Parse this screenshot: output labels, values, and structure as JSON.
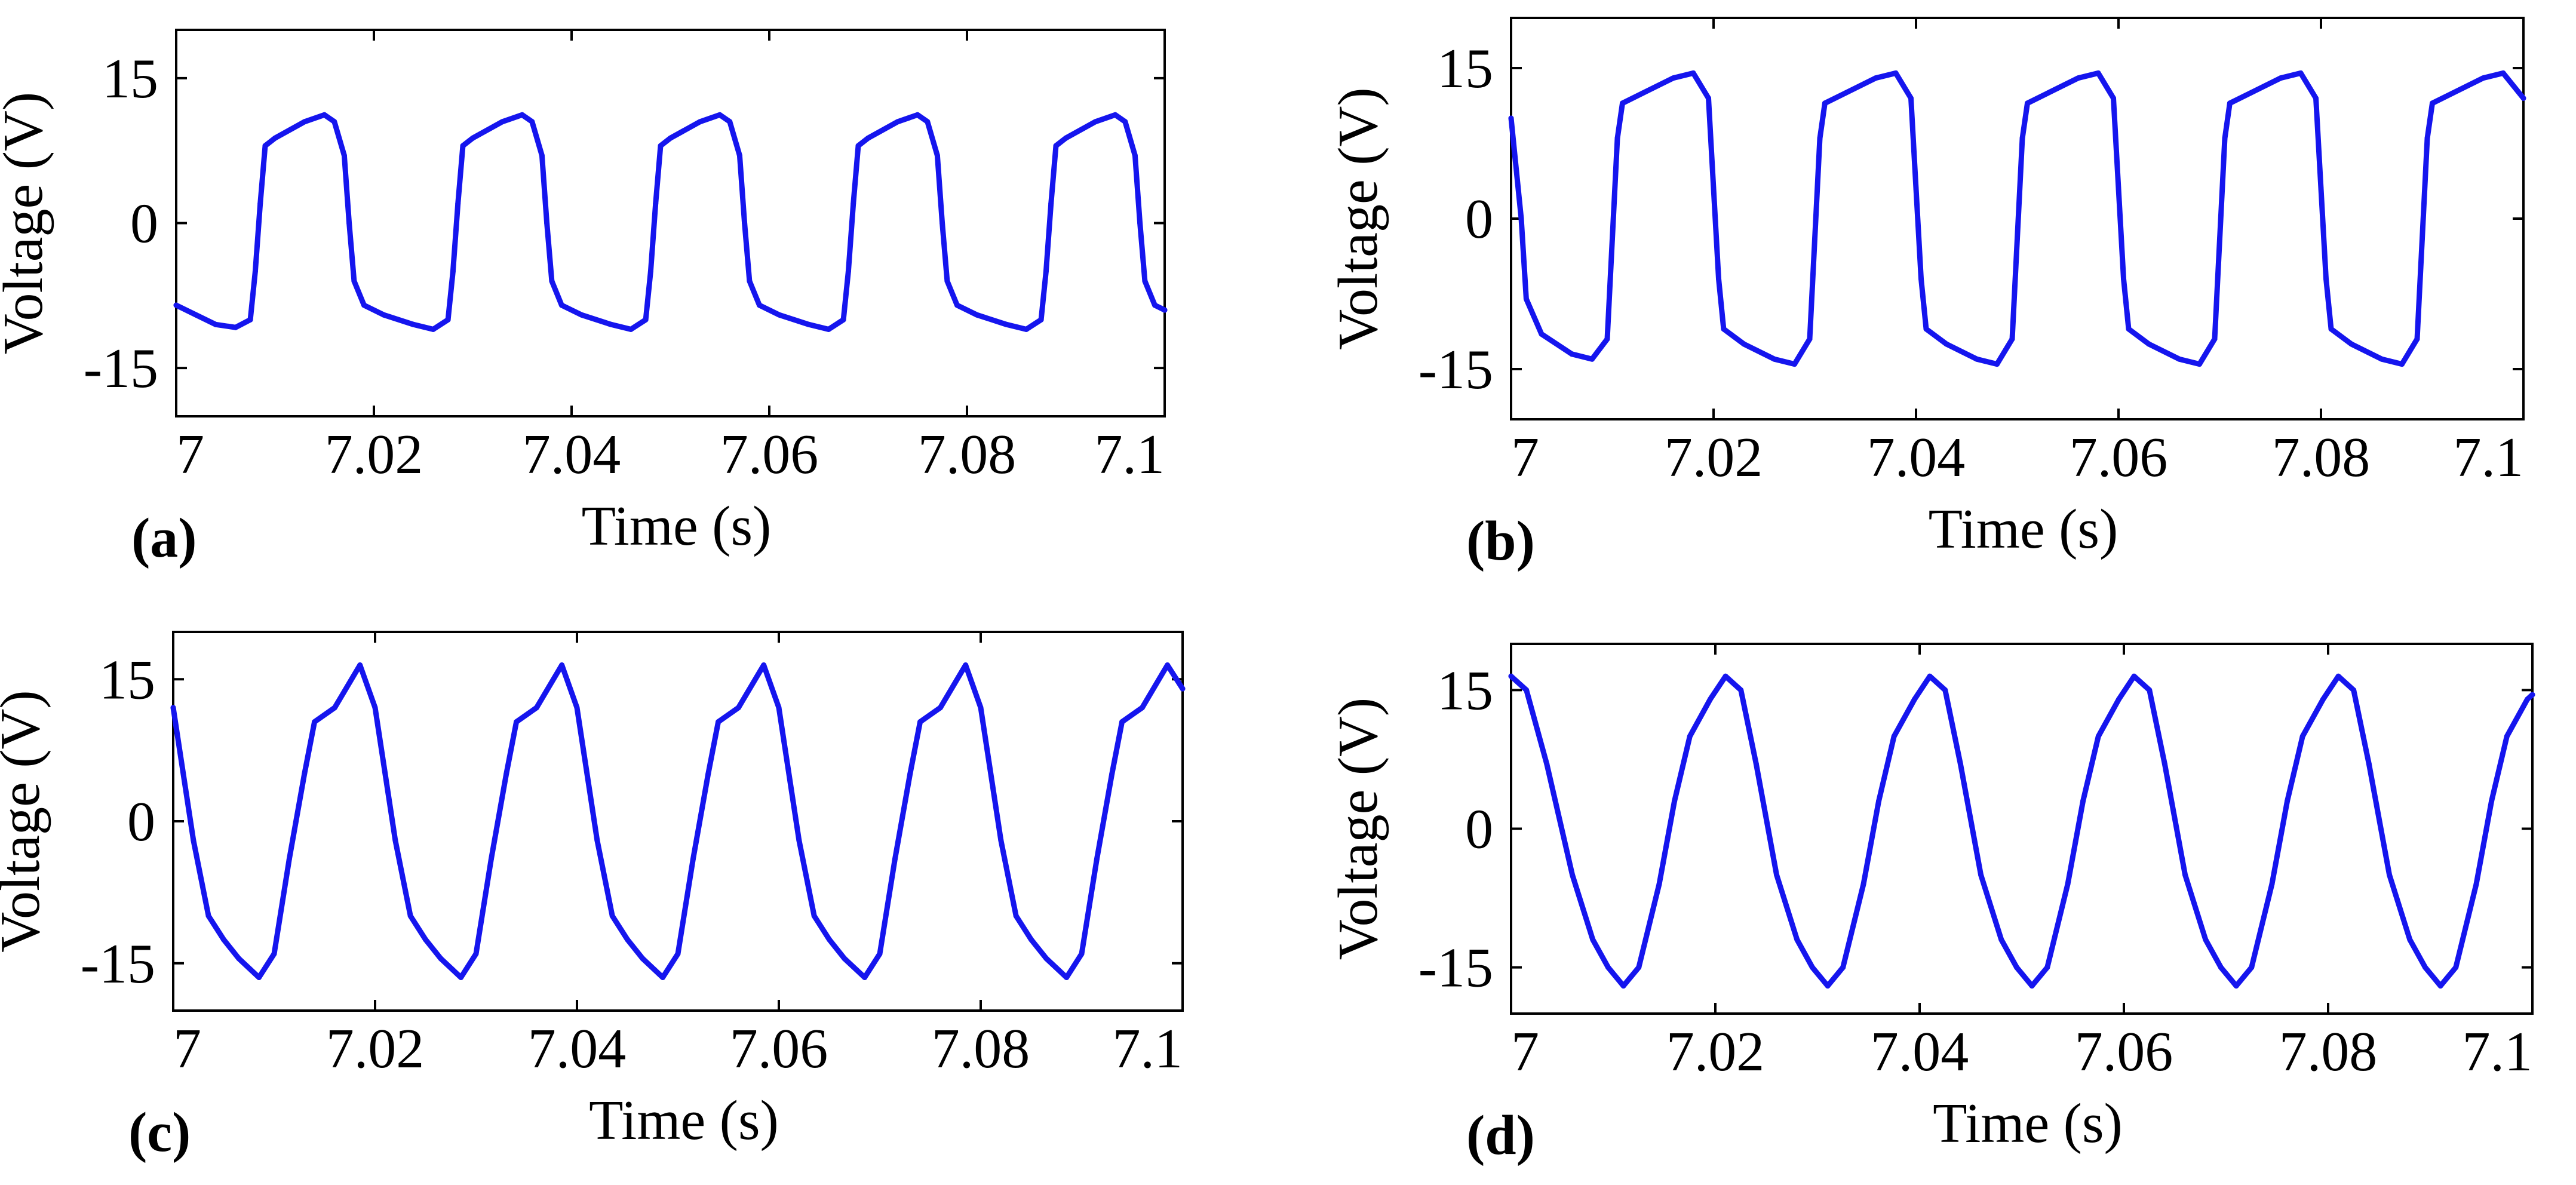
{
  "chart_data": [
    {
      "panel_label": "(a)",
      "type": "line",
      "xlabel": "Time (s)",
      "ylabel": "Voltage (V)",
      "xlim": [
        7,
        7.1
      ],
      "ylim": [
        -20,
        20
      ],
      "xticks": [
        7,
        7.02,
        7.04,
        7.06,
        7.08,
        7.1
      ],
      "xtick_labels": [
        "7",
        "7.02",
        "7.04",
        "7.06",
        "7.08",
        "7.1"
      ],
      "yticks": [
        15,
        0,
        -15
      ],
      "ytick_labels": [
        "15",
        "0",
        "-15"
      ],
      "grid": false,
      "series": [
        {
          "name": "voltage",
          "color": "#1515ee",
          "x": [
            7.0,
            7.002,
            7.004,
            7.006,
            7.0075,
            7.008,
            7.0085,
            7.009,
            7.01,
            7.013,
            7.015,
            7.016,
            7.017,
            7.0175,
            7.018,
            7.019,
            7.021,
            7.024,
            7.026,
            7.0275,
            7.028,
            7.0285,
            7.029,
            7.03,
            7.033,
            7.035,
            7.036,
            7.037,
            7.0375,
            7.038,
            7.039,
            7.041,
            7.044,
            7.046,
            7.0475,
            7.048,
            7.0485,
            7.049,
            7.05,
            7.053,
            7.055,
            7.056,
            7.057,
            7.0575,
            7.058,
            7.059,
            7.061,
            7.064,
            7.066,
            7.0675,
            7.068,
            7.0685,
            7.069,
            7.07,
            7.073,
            7.075,
            7.076,
            7.077,
            7.0775,
            7.078,
            7.079,
            7.081,
            7.084,
            7.086,
            7.0875,
            7.088,
            7.0885,
            7.089,
            7.09,
            7.093,
            7.095,
            7.096,
            7.097,
            7.0975,
            7.098,
            7.099,
            7.1
          ],
          "y": [
            -8.5,
            -9.5,
            -10.5,
            -10.8,
            -10.0,
            -5.0,
            2.0,
            8.0,
            8.8,
            10.5,
            11.2,
            10.5,
            7.0,
            0.0,
            -6.0,
            -8.5,
            -9.5,
            -10.5,
            -11.0,
            -10.0,
            -5.0,
            2.0,
            8.0,
            8.8,
            10.5,
            11.2,
            10.5,
            7.0,
            0.0,
            -6.0,
            -8.5,
            -9.5,
            -10.5,
            -11.0,
            -10.0,
            -5.0,
            2.0,
            8.0,
            8.8,
            10.5,
            11.2,
            10.5,
            7.0,
            0.0,
            -6.0,
            -8.5,
            -9.5,
            -10.5,
            -11.0,
            -10.0,
            -5.0,
            2.0,
            8.0,
            8.8,
            10.5,
            11.2,
            10.5,
            7.0,
            0.0,
            -6.0,
            -8.5,
            -9.5,
            -10.5,
            -11.0,
            -10.0,
            -5.0,
            2.0,
            8.0,
            8.8,
            10.5,
            11.2,
            10.5,
            7.0,
            0.0,
            -6.0,
            -8.5,
            -9.0
          ]
        }
      ]
    },
    {
      "panel_label": "(b)",
      "type": "line",
      "xlabel": "Time (s)",
      "ylabel": "Voltage (V)",
      "xlim": [
        7,
        7.1
      ],
      "ylim": [
        -20,
        20
      ],
      "xticks": [
        7,
        7.02,
        7.04,
        7.06,
        7.08,
        7.1
      ],
      "xtick_labels": [
        "7",
        "7.02",
        "7.04",
        "7.06",
        "7.08",
        "7.1"
      ],
      "yticks": [
        15,
        0,
        -15
      ],
      "ytick_labels": [
        "15",
        "0",
        "-15"
      ],
      "grid": false,
      "series": [
        {
          "name": "voltage",
          "color": "#1515ee",
          "x": [
            7.0,
            7.001,
            7.0015,
            7.003,
            7.006,
            7.008,
            7.0095,
            7.01,
            7.0105,
            7.011,
            7.013,
            7.016,
            7.018,
            7.0195,
            7.02,
            7.0205,
            7.021,
            7.023,
            7.026,
            7.028,
            7.0295,
            7.03,
            7.0305,
            7.031,
            7.033,
            7.036,
            7.038,
            7.0395,
            7.04,
            7.0405,
            7.041,
            7.043,
            7.046,
            7.048,
            7.0495,
            7.05,
            7.0505,
            7.051,
            7.053,
            7.056,
            7.058,
            7.0595,
            7.06,
            7.0605,
            7.061,
            7.063,
            7.066,
            7.068,
            7.0695,
            7.07,
            7.0705,
            7.071,
            7.073,
            7.076,
            7.078,
            7.0795,
            7.08,
            7.0805,
            7.081,
            7.083,
            7.086,
            7.088,
            7.0895,
            7.09,
            7.0905,
            7.091,
            7.093,
            7.096,
            7.098,
            7.1
          ],
          "y": [
            10.0,
            0.0,
            -8.0,
            -11.5,
            -13.5,
            -14.0,
            -12.0,
            -2.0,
            8.0,
            11.5,
            12.5,
            14.0,
            14.5,
            12.0,
            3.0,
            -6.0,
            -11.0,
            -12.5,
            -14.0,
            -14.5,
            -12.0,
            -2.0,
            8.0,
            11.5,
            12.5,
            14.0,
            14.5,
            12.0,
            3.0,
            -6.0,
            -11.0,
            -12.5,
            -14.0,
            -14.5,
            -12.0,
            -2.0,
            8.0,
            11.5,
            12.5,
            14.0,
            14.5,
            12.0,
            3.0,
            -6.0,
            -11.0,
            -12.5,
            -14.0,
            -14.5,
            -12.0,
            -2.0,
            8.0,
            11.5,
            12.5,
            14.0,
            14.5,
            12.0,
            3.0,
            -6.0,
            -11.0,
            -12.5,
            -14.0,
            -14.5,
            -12.0,
            -2.0,
            8.0,
            11.5,
            12.5,
            14.0,
            14.5,
            12.0
          ]
        }
      ]
    },
    {
      "panel_label": "(c)",
      "type": "line",
      "xlabel": "Time (s)",
      "ylabel": "Voltage (V)",
      "xlim": [
        7,
        7.1
      ],
      "ylim": [
        -20,
        20
      ],
      "xticks": [
        7,
        7.02,
        7.04,
        7.06,
        7.08,
        7.1
      ],
      "xtick_labels": [
        "7",
        "7.02",
        "7.04",
        "7.06",
        "7.08",
        "7.1"
      ],
      "yticks": [
        15,
        0,
        -15
      ],
      "ytick_labels": [
        "15",
        "0",
        "-15"
      ],
      "grid": false,
      "series": [
        {
          "name": "voltage",
          "color": "#1515ee",
          "x": [
            7.0,
            7.002,
            7.0035,
            7.005,
            7.0065,
            7.0085,
            7.01,
            7.0115,
            7.013,
            7.014,
            7.016,
            7.0185,
            7.02,
            7.022,
            7.0235,
            7.025,
            7.0265,
            7.0285,
            7.03,
            7.0315,
            7.033,
            7.034,
            7.036,
            7.0385,
            7.04,
            7.042,
            7.0435,
            7.045,
            7.0465,
            7.0485,
            7.05,
            7.0515,
            7.053,
            7.054,
            7.056,
            7.0585,
            7.06,
            7.062,
            7.0635,
            7.065,
            7.0665,
            7.0685,
            7.07,
            7.0715,
            7.073,
            7.074,
            7.076,
            7.0785,
            7.08,
            7.082,
            7.0835,
            7.085,
            7.0865,
            7.0885,
            7.09,
            7.0915,
            7.093,
            7.094,
            7.096,
            7.0985,
            7.1
          ],
          "y": [
            12.0,
            -2.0,
            -10.0,
            -12.5,
            -14.5,
            -16.5,
            -14.0,
            -4.0,
            5.0,
            10.5,
            12.0,
            16.5,
            12.0,
            -2.0,
            -10.0,
            -12.5,
            -14.5,
            -16.5,
            -14.0,
            -4.0,
            5.0,
            10.5,
            12.0,
            16.5,
            12.0,
            -2.0,
            -10.0,
            -12.5,
            -14.5,
            -16.5,
            -14.0,
            -4.0,
            5.0,
            10.5,
            12.0,
            16.5,
            12.0,
            -2.0,
            -10.0,
            -12.5,
            -14.5,
            -16.5,
            -14.0,
            -4.0,
            5.0,
            10.5,
            12.0,
            16.5,
            12.0,
            -2.0,
            -10.0,
            -12.5,
            -14.5,
            -16.5,
            -14.0,
            -4.0,
            5.0,
            10.5,
            12.0,
            16.5,
            14.0
          ]
        }
      ]
    },
    {
      "panel_label": "(d)",
      "type": "line",
      "xlabel": "Time (s)",
      "ylabel": "Voltage (V)",
      "xlim": [
        7,
        7.1
      ],
      "ylim": [
        -20,
        20
      ],
      "xticks": [
        7,
        7.02,
        7.04,
        7.06,
        7.08,
        7.1
      ],
      "xtick_labels": [
        "7",
        "7.02",
        "7.04",
        "7.06",
        "7.08",
        "7.1"
      ],
      "yticks": [
        15,
        0,
        -15
      ],
      "ytick_labels": [
        "15",
        "0",
        "-15"
      ],
      "grid": false,
      "series": [
        {
          "name": "voltage",
          "color": "#1515ee",
          "x": [
            7.0,
            7.0015,
            7.0035,
            7.006,
            7.008,
            7.0095,
            7.011,
            7.0125,
            7.0145,
            7.016,
            7.0175,
            7.0195,
            7.021,
            7.0225,
            7.024,
            7.026,
            7.028,
            7.0295,
            7.031,
            7.0325,
            7.0345,
            7.036,
            7.0375,
            7.0395,
            7.041,
            7.0425,
            7.044,
            7.046,
            7.048,
            7.0495,
            7.051,
            7.0525,
            7.0545,
            7.056,
            7.0575,
            7.0595,
            7.061,
            7.0625,
            7.064,
            7.066,
            7.068,
            7.0695,
            7.071,
            7.0725,
            7.0745,
            7.076,
            7.0775,
            7.0795,
            7.081,
            7.0825,
            7.084,
            7.086,
            7.088,
            7.0895,
            7.091,
            7.0925,
            7.0945,
            7.096,
            7.0975,
            7.0995,
            7.1
          ],
          "y": [
            16.5,
            15.0,
            7.0,
            -5.0,
            -12.0,
            -15.0,
            -17.0,
            -15.0,
            -6.0,
            3.0,
            10.0,
            14.0,
            16.5,
            15.0,
            7.0,
            -5.0,
            -12.0,
            -15.0,
            -17.0,
            -15.0,
            -6.0,
            3.0,
            10.0,
            14.0,
            16.5,
            15.0,
            7.0,
            -5.0,
            -12.0,
            -15.0,
            -17.0,
            -15.0,
            -6.0,
            3.0,
            10.0,
            14.0,
            16.5,
            15.0,
            7.0,
            -5.0,
            -12.0,
            -15.0,
            -17.0,
            -15.0,
            -6.0,
            3.0,
            10.0,
            14.0,
            16.5,
            15.0,
            7.0,
            -5.0,
            -12.0,
            -15.0,
            -17.0,
            -15.0,
            -6.0,
            3.0,
            10.0,
            14.0,
            14.5
          ]
        }
      ]
    }
  ]
}
